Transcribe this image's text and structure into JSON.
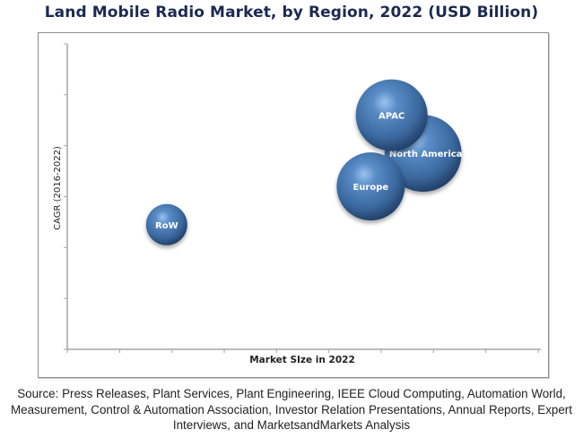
{
  "chart_data": {
    "type": "scatter",
    "subtype": "bubble",
    "title": "Land Mobile Radio Market, by Region, 2022 (USD Billion)",
    "xlabel": "Market SIze in 2022",
    "ylabel": "CAGR (2016-2022)",
    "xlim": [
      0,
      9
    ],
    "ylim": [
      0,
      6
    ],
    "x_ticks": [
      0,
      1,
      2,
      3,
      4,
      5,
      6,
      7,
      8,
      9
    ],
    "y_ticks": [
      0,
      1,
      2,
      3,
      4,
      5,
      6
    ],
    "tick_labels_shown": false,
    "grid": false,
    "legend": "none",
    "bubble_color": "#3f6fa6",
    "series": [
      {
        "name": "APAC",
        "x": 6.2,
        "y": 4.6,
        "size": 1.0
      },
      {
        "name": "North America",
        "x": 6.8,
        "y": 3.85,
        "size": 1.15
      },
      {
        "name": "Europe",
        "x": 5.8,
        "y": 3.2,
        "size": 0.9
      },
      {
        "name": "RoW",
        "x": 1.9,
        "y": 2.45,
        "size": 0.33
      }
    ]
  },
  "source_text": "Source: Press Releases, Plant Services, Plant Engineering, IEEE Cloud Computing, Automation World, Measurement, Control & Automation Association, Investor Relation Presentations, Annual Reports, Expert Interviews, and MarketsandMarkets Analysis"
}
